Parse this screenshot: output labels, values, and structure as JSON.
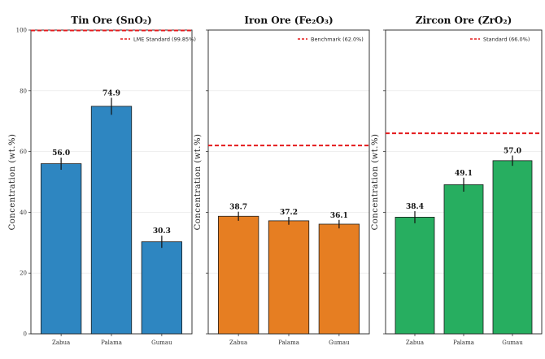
{
  "chart_data": [
    {
      "type": "bar",
      "title": "Tin Ore (SnO₂)",
      "ylabel": "Concentration (wt.%)",
      "categories": [
        "Zabua",
        "Palama",
        "Gumau"
      ],
      "values": [
        56.0,
        74.9,
        30.3
      ],
      "errors": [
        2.0,
        2.8,
        2.0
      ],
      "value_labels": [
        "56.0",
        "74.9",
        "30.3"
      ],
      "color": "#2e86c1",
      "ylim": [
        0,
        100
      ],
      "yticks": [
        0,
        20,
        40,
        60,
        80,
        100
      ],
      "reference": {
        "value": 99.85,
        "label": "LME Standard (99.85%)",
        "color": "#e41a1c"
      },
      "grid": true
    },
    {
      "type": "bar",
      "title": "Iron Ore (Fe₂O₃)",
      "ylabel": "Concentration (wt.%)",
      "categories": [
        "Zabua",
        "Palama",
        "Gumau"
      ],
      "values": [
        38.7,
        37.2,
        36.1
      ],
      "errors": [
        1.5,
        1.3,
        1.4
      ],
      "value_labels": [
        "38.7",
        "37.2",
        "36.1"
      ],
      "color": "#e67e22",
      "ylim": [
        0,
        100
      ],
      "yticks": [
        0,
        20,
        40,
        60,
        80,
        100
      ],
      "reference": {
        "value": 62.0,
        "label": "Benchmark (62.0%)",
        "color": "#e41a1c"
      },
      "grid": true
    },
    {
      "type": "bar",
      "title": "Zircon Ore (ZrO₂)",
      "ylabel": "Concentration (wt.%)",
      "categories": [
        "Zabua",
        "Palama",
        "Gumau"
      ],
      "values": [
        38.4,
        49.1,
        57.0
      ],
      "errors": [
        2.0,
        2.3,
        1.7
      ],
      "value_labels": [
        "38.4",
        "49.1",
        "57.0"
      ],
      "color": "#27ae60",
      "ylim": [
        0,
        100
      ],
      "yticks": [
        0,
        20,
        40,
        60,
        80,
        100
      ],
      "reference": {
        "value": 66.0,
        "label": "Standard (66.0%)",
        "color": "#e41a1c"
      },
      "grid": true
    }
  ]
}
